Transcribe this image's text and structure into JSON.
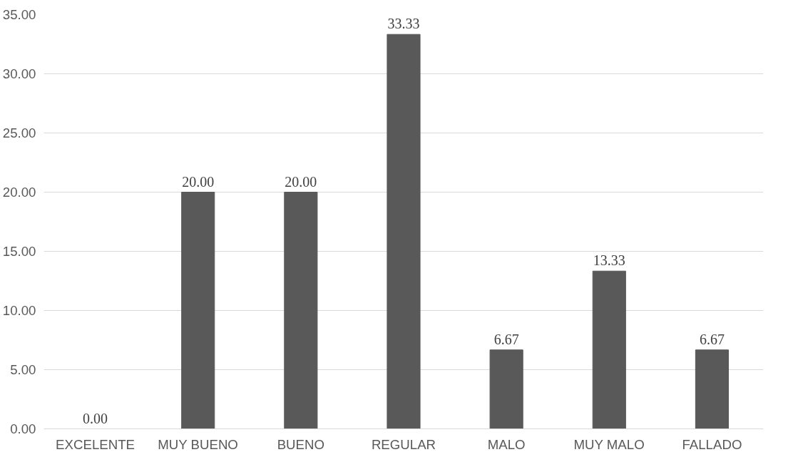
{
  "chart_data": {
    "type": "bar",
    "categories": [
      "EXCELENTE",
      "MUY BUENO",
      "BUENO",
      "REGULAR",
      "MALO",
      "MUY MALO",
      "FALLADO"
    ],
    "values": [
      0,
      20,
      20,
      33.33,
      6.67,
      13.33,
      6.67
    ],
    "value_labels": [
      "0.00",
      "20.00",
      "20.00",
      "33.33",
      "6.67",
      "13.33",
      "6.67"
    ],
    "color": "#595959",
    "ylim": [
      0,
      35
    ],
    "yticks": [
      {
        "value": 0,
        "label": "0.00"
      },
      {
        "value": 5,
        "label": "5.00"
      },
      {
        "value": 10,
        "label": "10.00"
      },
      {
        "value": 15,
        "label": "15.00"
      },
      {
        "value": 20,
        "label": "20.00"
      },
      {
        "value": 25,
        "label": "25.00"
      },
      {
        "value": 30,
        "label": "30.00"
      },
      {
        "value": 35,
        "label": "35.00"
      }
    ],
    "grid": "y"
  }
}
